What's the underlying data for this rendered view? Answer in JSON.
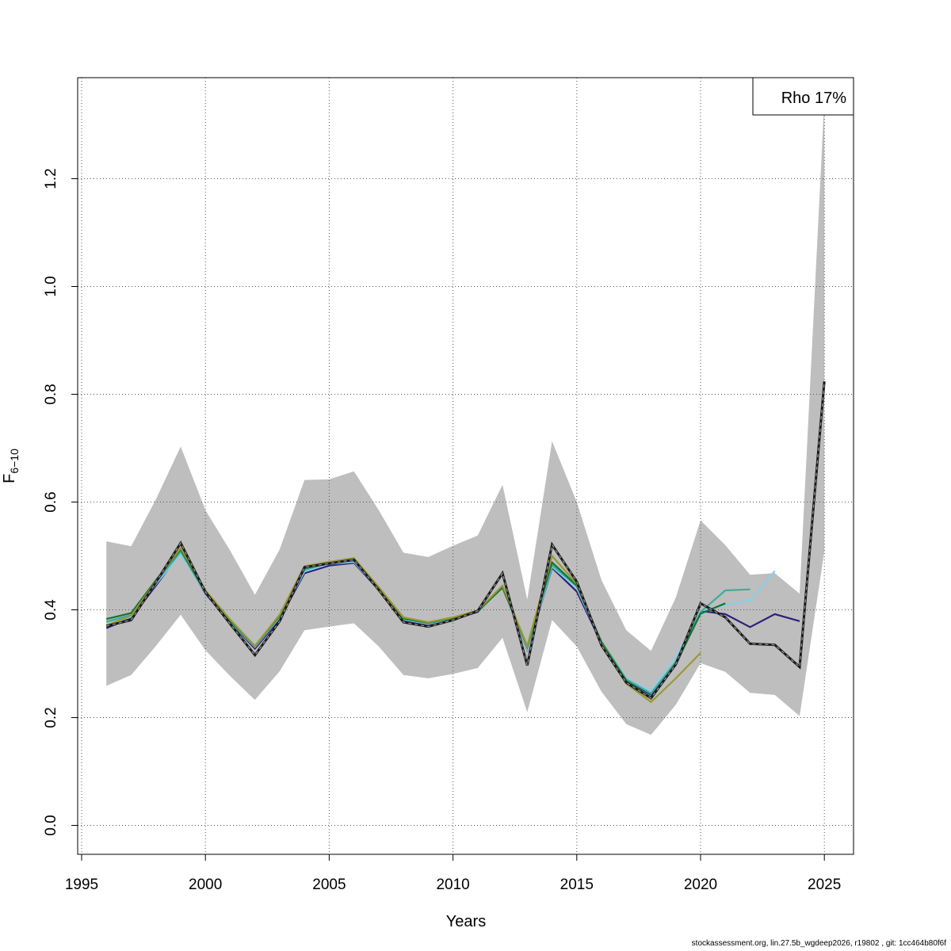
{
  "chart_data": {
    "type": "line",
    "xlabel": "Years",
    "ylabel_main": "F",
    "ylabel_sub": "6−10",
    "xlim": [
      1995,
      2026
    ],
    "ylim": [
      0.0,
      1.35
    ],
    "xticks": [
      1995,
      2000,
      2005,
      2010,
      2015,
      2020,
      2025
    ],
    "yticks": [
      0.0,
      0.2,
      0.4,
      0.6,
      0.8,
      1.0,
      1.2
    ],
    "ytick_labels": [
      "0.0",
      "0.2",
      "0.4",
      "0.6",
      "0.8",
      "1.0",
      "1.2"
    ],
    "grid": true,
    "legend_text": "Rho 17%",
    "legend_position": "top-right",
    "confidence_band": {
      "color": "#bebebe",
      "x": [
        1996,
        1997,
        1998,
        1999,
        2000,
        2001,
        2002,
        2003,
        2004,
        2005,
        2006,
        2007,
        2008,
        2009,
        2010,
        2011,
        2012,
        2013,
        2014,
        2015,
        2016,
        2017,
        2018,
        2019,
        2020,
        2021,
        2022,
        2023,
        2024,
        2025
      ],
      "upper": [
        0.527,
        0.518,
        0.605,
        0.703,
        0.585,
        0.51,
        0.428,
        0.512,
        0.641,
        0.642,
        0.657,
        0.585,
        0.506,
        0.498,
        0.519,
        0.538,
        0.632,
        0.419,
        0.713,
        0.6,
        0.455,
        0.362,
        0.324,
        0.423,
        0.566,
        0.52,
        0.465,
        0.468,
        0.43,
        1.345
      ],
      "lower": [
        0.259,
        0.279,
        0.333,
        0.391,
        0.325,
        0.277,
        0.233,
        0.286,
        0.362,
        0.369,
        0.375,
        0.332,
        0.279,
        0.273,
        0.281,
        0.292,
        0.348,
        0.21,
        0.381,
        0.332,
        0.248,
        0.188,
        0.168,
        0.224,
        0.301,
        0.285,
        0.246,
        0.242,
        0.203,
        0.509
      ]
    },
    "series": [
      {
        "color": "#2a1f7a",
        "dashed": false,
        "x": [
          1996,
          1997,
          1998,
          1999,
          2000,
          2001,
          2002,
          2003,
          2004,
          2005,
          2006,
          2007,
          2008,
          2009,
          2010,
          2011,
          2012,
          2013,
          2014,
          2015,
          2016,
          2017,
          2018,
          2019,
          2020,
          2021,
          2022,
          2023,
          2024
        ],
        "values": [
          0.366,
          0.385,
          0.445,
          0.507,
          0.43,
          0.377,
          0.328,
          0.383,
          0.468,
          0.482,
          0.487,
          0.437,
          0.38,
          0.373,
          0.382,
          0.396,
          0.443,
          0.326,
          0.478,
          0.434,
          0.338,
          0.27,
          0.243,
          0.298,
          0.398,
          0.392,
          0.368,
          0.392,
          0.379
        ]
      },
      {
        "color": "#87ceeb",
        "dashed": false,
        "x": [
          1996,
          1997,
          1998,
          1999,
          2000,
          2001,
          2002,
          2003,
          2004,
          2005,
          2006,
          2007,
          2008,
          2009,
          2010,
          2011,
          2012,
          2013,
          2014,
          2015,
          2016,
          2017,
          2018,
          2019,
          2020,
          2021,
          2022,
          2023
        ],
        "values": [
          0.372,
          0.387,
          0.448,
          0.504,
          0.431,
          0.378,
          0.331,
          0.386,
          0.471,
          0.485,
          0.489,
          0.438,
          0.382,
          0.374,
          0.383,
          0.397,
          0.442,
          0.327,
          0.48,
          0.44,
          0.34,
          0.272,
          0.249,
          0.312,
          0.398,
          0.409,
          0.418,
          0.472
        ]
      },
      {
        "color": "#44aa99",
        "dashed": false,
        "x": [
          1996,
          1997,
          1998,
          1999,
          2000,
          2001,
          2002,
          2003,
          2004,
          2005,
          2006,
          2007,
          2008,
          2009,
          2010,
          2011,
          2012,
          2013,
          2014,
          2015,
          2016,
          2017,
          2018,
          2019,
          2020,
          2021,
          2022
        ],
        "values": [
          0.378,
          0.39,
          0.451,
          0.508,
          0.432,
          0.379,
          0.332,
          0.388,
          0.474,
          0.487,
          0.491,
          0.439,
          0.383,
          0.375,
          0.384,
          0.398,
          0.442,
          0.33,
          0.483,
          0.444,
          0.341,
          0.271,
          0.245,
          0.304,
          0.396,
          0.436,
          0.438
        ]
      },
      {
        "color": "#117733",
        "dashed": false,
        "x": [
          1996,
          1997,
          1998,
          1999,
          2000,
          2001,
          2002,
          2003,
          2004,
          2005,
          2006,
          2007,
          2008,
          2009,
          2010,
          2011,
          2012,
          2013,
          2014,
          2015,
          2016,
          2017,
          2018,
          2019,
          2020,
          2021
        ],
        "values": [
          0.383,
          0.394,
          0.455,
          0.512,
          0.433,
          0.38,
          0.333,
          0.389,
          0.477,
          0.488,
          0.492,
          0.44,
          0.384,
          0.376,
          0.385,
          0.398,
          0.441,
          0.332,
          0.488,
          0.445,
          0.34,
          0.268,
          0.238,
          0.3,
          0.393,
          0.412
        ]
      },
      {
        "color": "#999933",
        "dashed": false,
        "x": [
          1996,
          1997,
          1998,
          1999,
          2000,
          2001,
          2002,
          2003,
          2004,
          2005,
          2006,
          2007,
          2008,
          2009,
          2010,
          2011,
          2012,
          2013,
          2014,
          2015,
          2016,
          2017,
          2018,
          2019,
          2020
        ],
        "values": [
          0.371,
          0.389,
          0.453,
          0.515,
          0.436,
          0.382,
          0.333,
          0.391,
          0.481,
          0.489,
          0.496,
          0.442,
          0.386,
          0.377,
          0.386,
          0.399,
          0.445,
          0.333,
          0.5,
          0.448,
          0.337,
          0.263,
          0.229,
          0.273,
          0.32
        ]
      },
      {
        "color": "#1a1a1a",
        "dashed": true,
        "x": [
          1996,
          1997,
          1998,
          1999,
          2000,
          2001,
          2002,
          2003,
          2004,
          2005,
          2006,
          2007,
          2008,
          2009,
          2010,
          2011,
          2012,
          2013,
          2014,
          2015,
          2016,
          2017,
          2018,
          2019,
          2020,
          2021,
          2022,
          2023,
          2024,
          2025
        ],
        "values": [
          0.37,
          0.381,
          0.451,
          0.524,
          0.433,
          0.374,
          0.316,
          0.379,
          0.479,
          0.486,
          0.493,
          0.437,
          0.377,
          0.369,
          0.381,
          0.398,
          0.468,
          0.297,
          0.521,
          0.452,
          0.334,
          0.265,
          0.236,
          0.299,
          0.412,
          0.386,
          0.337,
          0.335,
          0.294,
          0.824
        ]
      }
    ]
  },
  "footer_text": "stockassessment.org, lin.27.5b_wgdeep2026, r19802 , git: 1cc464b80f6f"
}
